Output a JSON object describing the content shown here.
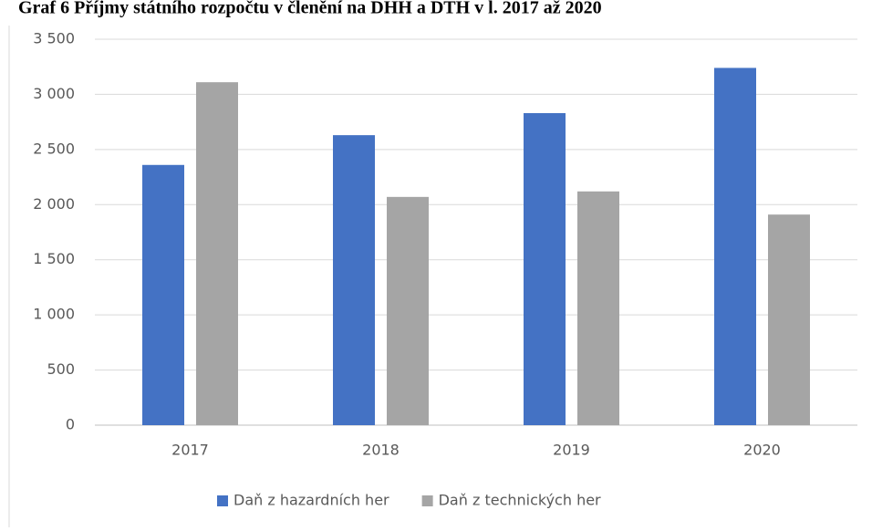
{
  "chart_data": {
    "type": "bar",
    "title": "Graf 6 Příjmy státního rozpočtu v členění na DHH a DTH v l. 2017 až 2020",
    "categories": [
      "2017",
      "2018",
      "2019",
      "2020"
    ],
    "series": [
      {
        "name": "Daň z hazardních her",
        "color": "#4472c4",
        "values": [
          2360,
          2630,
          2830,
          3240
        ]
      },
      {
        "name": "Daň z technických her",
        "color": "#a5a5a5",
        "values": [
          3110,
          2070,
          2120,
          1910
        ]
      }
    ],
    "ylim": [
      0,
      3500
    ],
    "yticks": [
      0,
      500,
      {
        "value": 1000,
        "label": "1 000"
      },
      {
        "value": 1500,
        "label": "1 500"
      },
      {
        "value": 2000,
        "label": "2 000"
      },
      {
        "value": 2500,
        "label": "2 500"
      },
      {
        "value": 3000,
        "label": "3 000"
      },
      {
        "value": 3500,
        "label": "3 500"
      }
    ],
    "grid": true,
    "legend": "bottom"
  }
}
